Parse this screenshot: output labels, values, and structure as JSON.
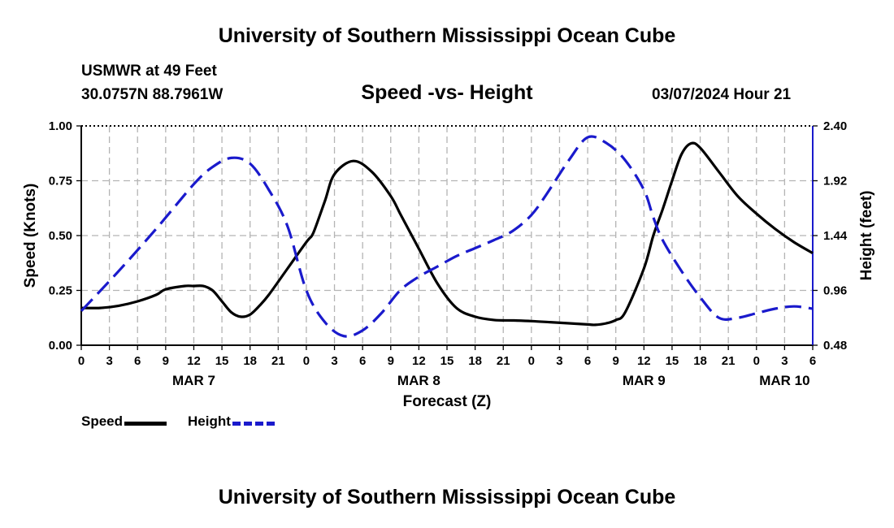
{
  "header": {
    "title": "University of Southern Mississippi Ocean Cube",
    "station": "USMWR at 49 Feet",
    "coordinates": "30.0757N  88.7961W",
    "subtitle": "Speed -vs- Height",
    "date": "03/07/2024 Hour 21"
  },
  "footer": {
    "title": "University of Southern Mississippi Ocean Cube"
  },
  "legend": {
    "speed_label": "Speed",
    "height_label": "Height",
    "speed_color": "#000000",
    "height_color": "#1a1acc"
  },
  "chart_data": {
    "type": "line",
    "title": "Speed -vs- Height",
    "xlabel": "Forecast (Z)",
    "ylabel": "Speed (Knots)",
    "y2label": "Height (feet)",
    "grid": true,
    "legend_position": "bottom-left",
    "x_unit": "hours since 03/07 00Z",
    "xlim": [
      0,
      78
    ],
    "ylim": [
      0,
      1.0
    ],
    "y2lim": [
      0.48,
      2.4
    ],
    "x_tick_labels": [
      "0",
      "3",
      "6",
      "9",
      "12",
      "15",
      "18",
      "21",
      "0",
      "3",
      "6",
      "9",
      "12",
      "15",
      "18",
      "21",
      "0",
      "3",
      "6",
      "9",
      "12",
      "15",
      "18",
      "21",
      "0",
      "3",
      "6"
    ],
    "y_ticks": [
      "0.00",
      "0.25",
      "0.50",
      "0.75",
      "1.00"
    ],
    "y2_ticks": [
      "0.48",
      "0.96",
      "1.44",
      "1.92",
      "2.40"
    ],
    "day_labels": [
      {
        "x": 12,
        "label": "MAR 7"
      },
      {
        "x": 36,
        "label": "MAR 8"
      },
      {
        "x": 60,
        "label": "MAR 9"
      },
      {
        "x": 75,
        "label": "MAR 10"
      }
    ],
    "series": [
      {
        "name": "Speed",
        "axis": "left",
        "style": "solid",
        "color": "#000000",
        "x": [
          0,
          2,
          4,
          6,
          8,
          9,
          11,
          12,
          13,
          14,
          15,
          16,
          17,
          18,
          19,
          20,
          22,
          24,
          24.6,
          25,
          26,
          27,
          29,
          31,
          33,
          34,
          35,
          36,
          38,
          40,
          42,
          44,
          46,
          48,
          50,
          52,
          54,
          54.8,
          56,
          57,
          58,
          60,
          61,
          62,
          63,
          64,
          65,
          66,
          68,
          70,
          72,
          74,
          76,
          78
        ],
        "values": [
          0.17,
          0.17,
          0.18,
          0.2,
          0.23,
          0.255,
          0.27,
          0.27,
          0.27,
          0.25,
          0.2,
          0.15,
          0.13,
          0.14,
          0.18,
          0.23,
          0.35,
          0.47,
          0.5,
          0.54,
          0.66,
          0.78,
          0.84,
          0.79,
          0.68,
          0.6,
          0.52,
          0.44,
          0.28,
          0.17,
          0.13,
          0.115,
          0.113,
          0.11,
          0.105,
          0.1,
          0.095,
          0.093,
          0.1,
          0.115,
          0.15,
          0.35,
          0.5,
          0.62,
          0.75,
          0.87,
          0.92,
          0.9,
          0.79,
          0.68,
          0.6,
          0.53,
          0.47,
          0.42
        ]
      },
      {
        "name": "Height",
        "axis": "right",
        "style": "dashed",
        "color": "#1a1acc",
        "x": [
          0,
          4,
          8,
          12,
          14,
          16,
          18,
          20,
          22,
          24,
          26,
          28,
          30,
          32,
          34,
          36,
          38,
          40,
          42,
          44,
          46,
          48,
          49.6,
          52,
          54,
          56,
          58,
          60,
          61,
          62,
          64,
          66,
          68,
          70,
          72,
          74,
          76,
          78
        ],
        "values": [
          0.78,
          1.13,
          1.5,
          1.89,
          2.04,
          2.12,
          2.07,
          1.84,
          1.52,
          0.96,
          0.68,
          0.56,
          0.61,
          0.76,
          0.96,
          1.08,
          1.17,
          1.26,
          1.33,
          1.4,
          1.48,
          1.62,
          1.8,
          2.1,
          2.3,
          2.25,
          2.1,
          1.84,
          1.6,
          1.4,
          1.13,
          0.9,
          0.72,
          0.72,
          0.76,
          0.8,
          0.82,
          0.8
        ]
      }
    ]
  }
}
